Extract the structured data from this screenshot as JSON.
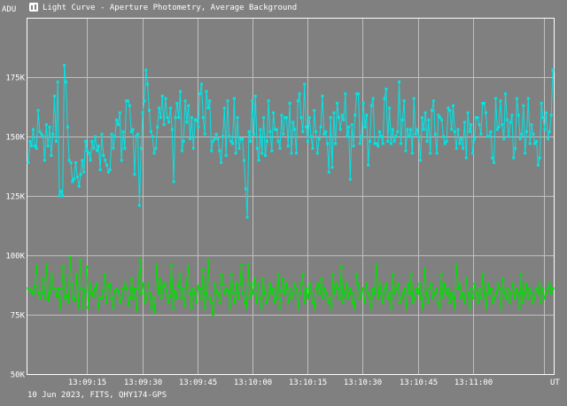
{
  "window": {
    "title": "Light Curve - Aperture Photometry, Average Background",
    "icon": "chart-app-icon"
  },
  "footer": {
    "caption": "10 Jun 2023, FITS, QHY174-GPS"
  },
  "colors": {
    "background": "#808080",
    "grid": "#bfbfbf",
    "text": "#ffffff",
    "series_top": "#00e5e5",
    "series_bottom": "#00e000"
  },
  "chart_data": {
    "type": "line",
    "ylabel": "ADU",
    "xlabel": "UT",
    "ylim": [
      50000,
      200000
    ],
    "xlim": [
      -16.5,
      127
    ],
    "y_ticks": [
      {
        "value": 50000,
        "label": "50K"
      },
      {
        "value": 75000,
        "label": "75K"
      },
      {
        "value": 100000,
        "label": "100K"
      },
      {
        "value": 125000,
        "label": "125K"
      },
      {
        "value": 150000,
        "label": "150K"
      },
      {
        "value": 175000,
        "label": "175K"
      }
    ],
    "x_ticks": [
      {
        "value": 0,
        "label": "13:09:15"
      },
      {
        "value": 15,
        "label": "13:09:30"
      },
      {
        "value": 30,
        "label": "13:09:45"
      },
      {
        "value": 45,
        "label": "13:10:00"
      },
      {
        "value": 60,
        "label": "13:10:15"
      },
      {
        "value": 75,
        "label": "13:10:30"
      },
      {
        "value": 90,
        "label": "13:10:45"
      },
      {
        "value": 105,
        "label": "13:11:00"
      }
    ],
    "grid": true,
    "series": [
      {
        "name": "",
        "color": "#00e5e5",
        "values": [
          139,
          148,
          146,
          153,
          146,
          145,
          161,
          152,
          151,
          150,
          140,
          155,
          146,
          154,
          142,
          151,
          167,
          148,
          173,
          125,
          127,
          125,
          180,
          173,
          154,
          140,
          139,
          131,
          132,
          139,
          133,
          129,
          134,
          140,
          135,
          148,
          144,
          143,
          140,
          148,
          145,
          150,
          144,
          146,
          136,
          151,
          142,
          140,
          138,
          135,
          136,
          151,
          145,
          150,
          157,
          155,
          160,
          140,
          152,
          145,
          165,
          165,
          163,
          152,
          153,
          134,
          150,
          151,
          121,
          145,
          160,
          165,
          178,
          172,
          161,
          152,
          150,
          143,
          145,
          154,
          162,
          158,
          167,
          155,
          166,
          158,
          156,
          162,
          153,
          131,
          158,
          164,
          158,
          169,
          144,
          148,
          165,
          156,
          163,
          149,
          158,
          145,
          157,
          157,
          154,
          168,
          172,
          158,
          151,
          169,
          162,
          165,
          144,
          148,
          149,
          151,
          149,
          144,
          139,
          150,
          162,
          142,
          165,
          150,
          148,
          147,
          166,
          143,
          158,
          145,
          149,
          149,
          140,
          128,
          116,
          152,
          148,
          165,
          151,
          167,
          145,
          140,
          153,
          143,
          158,
          142,
          148,
          165,
          152,
          144,
          160,
          153,
          153,
          148,
          145,
          159,
          151,
          158,
          158,
          146,
          164,
          143,
          156,
          153,
          143,
          165,
          168,
          158,
          152,
          172,
          154,
          148,
          158,
          150,
          145,
          161,
          152,
          143,
          149,
          154,
          167,
          151,
          152,
          147,
          135,
          158,
          137,
          160,
          147,
          164,
          158,
          153,
          159,
          157,
          168,
          150,
          154,
          132,
          155,
          146,
          159,
          168,
          168,
          147,
          150,
          164,
          154,
          159,
          138,
          148,
          163,
          166,
          147,
          147,
          146,
          152,
          150,
          147,
          166,
          170,
          148,
          162,
          147,
          153,
          148,
          150,
          152,
          173,
          147,
          157,
          165,
          144,
          153,
          150,
          153,
          143,
          166,
          151,
          153,
          150,
          140,
          158,
          153,
          160,
          148,
          157,
          143,
          161,
          165,
          151,
          143,
          159,
          158,
          157,
          150,
          147,
          148,
          162,
          161,
          153,
          163,
          152,
          145,
          153,
          147,
          149,
          145,
          156,
          141,
          160,
          152,
          155,
          143,
          149,
          158,
          158,
          155,
          151,
          164,
          164,
          160,
          150,
          150,
          152,
          141,
          139,
          166,
          153,
          154,
          165,
          155,
          149,
          168,
          157,
          150,
          156,
          159,
          141,
          145,
          166,
          159,
          149,
          151,
          163,
          143,
          152,
          166,
          147,
          155,
          151,
          147,
          148,
          138,
          141,
          164,
          158,
          153,
          160,
          149,
          152,
          159,
          178
        ]
      },
      {
        "name": "",
        "color": "#00e000",
        "values": [
          86,
          85,
          85,
          84,
          87,
          95,
          84,
          82,
          84,
          90,
          82,
          96,
          81,
          84,
          92,
          86,
          86,
          83,
          86,
          78,
          86,
          95,
          82,
          83,
          80,
          99,
          88,
          82,
          81,
          92,
          78,
          98,
          86,
          78,
          85,
          95,
          78,
          88,
          84,
          83,
          86,
          88,
          78,
          82,
          82,
          85,
          92,
          80,
          87,
          88,
          82,
          78,
          85,
          86,
          85,
          80,
          82,
          86,
          88,
          86,
          79,
          82,
          90,
          82,
          86,
          77,
          86,
          98,
          84,
          88,
          80,
          82,
          88,
          84,
          78,
          82,
          76,
          96,
          84,
          90,
          82,
          87,
          88,
          85,
          80,
          83,
          96,
          78,
          85,
          82,
          87,
          92,
          82,
          86,
          79,
          88,
          95,
          84,
          78,
          86,
          84,
          80,
          87,
          86,
          82,
          94,
          78,
          84,
          98,
          82,
          80,
          75,
          88,
          85,
          84,
          80,
          92,
          88,
          84,
          86,
          85,
          78,
          92,
          84,
          80,
          88,
          82,
          88,
          96,
          84,
          80,
          78,
          96,
          82,
          88,
          84,
          90,
          80,
          88,
          82,
          78,
          90,
          84,
          80,
          82,
          88,
          84,
          86,
          80,
          82,
          92,
          78,
          85,
          90,
          84,
          88,
          80,
          86,
          82,
          84,
          88,
          86,
          78,
          84,
          88,
          92,
          80,
          86,
          82,
          88,
          84,
          80,
          78,
          86,
          88,
          84,
          90,
          82,
          86,
          84,
          80,
          82,
          78,
          92,
          84,
          88,
          86,
          82,
          95,
          80,
          84,
          88,
          82,
          86,
          84,
          80,
          78,
          92,
          88,
          82,
          84,
          86,
          80,
          88,
          84,
          82,
          78,
          86,
          84,
          96,
          82,
          88,
          84,
          80,
          86,
          88,
          82,
          84,
          78,
          92,
          84,
          86,
          88,
          80,
          82,
          84,
          86,
          78,
          88,
          84,
          92,
          80,
          82,
          86,
          84,
          88,
          82,
          78,
          94,
          84,
          80,
          86,
          88,
          82,
          84,
          86,
          80,
          78,
          92,
          82,
          88,
          84,
          86,
          80,
          84,
          82,
          78,
          96,
          86,
          88,
          82,
          84,
          80,
          90,
          84,
          78,
          86,
          82,
          88,
          84,
          80,
          86,
          82,
          92,
          84,
          78,
          88,
          84,
          86,
          80,
          82,
          84,
          88,
          86,
          78,
          90,
          84,
          82,
          86,
          80,
          84,
          88,
          82,
          86,
          84,
          78,
          92,
          80,
          84,
          88,
          82,
          86,
          84,
          80,
          82,
          86,
          84,
          88,
          80,
          86,
          82,
          84,
          86,
          88,
          84,
          86
        ]
      }
    ]
  }
}
